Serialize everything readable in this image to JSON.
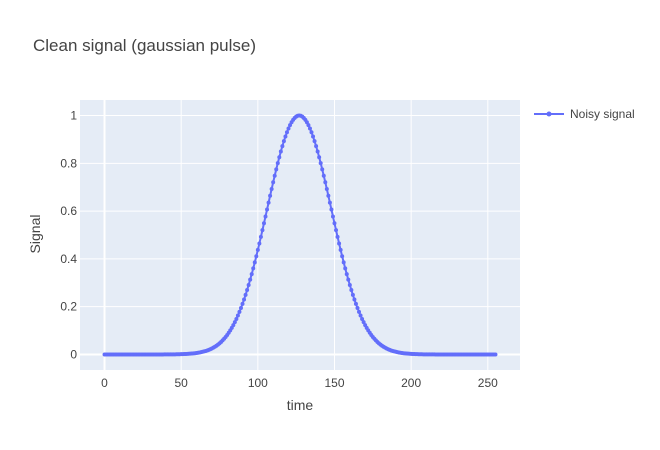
{
  "chart_data": {
    "type": "line",
    "title": "Clean signal (gaussian pulse)",
    "xlabel": "time",
    "ylabel": "Signal",
    "xlim": [
      -16,
      271
    ],
    "ylim": [
      -0.065,
      1.065
    ],
    "xticks": [
      0,
      50,
      100,
      150,
      200,
      250
    ],
    "yticks": [
      0,
      0.2,
      0.4,
      0.6,
      0.8,
      1
    ],
    "grid": true,
    "legend_position": "top-right",
    "series": [
      {
        "name": "Noisy signal",
        "mode": "lines+markers",
        "color": "#636efa",
        "generator": {
          "kind": "gaussian",
          "x_start": 0,
          "x_end": 255,
          "step": 1,
          "center": 127,
          "sigma": 21
        }
      }
    ]
  },
  "colors": {
    "plot_bg": "#e5ecf6",
    "grid": "#ffffff",
    "text": "#444444",
    "series": "#636efa"
  }
}
